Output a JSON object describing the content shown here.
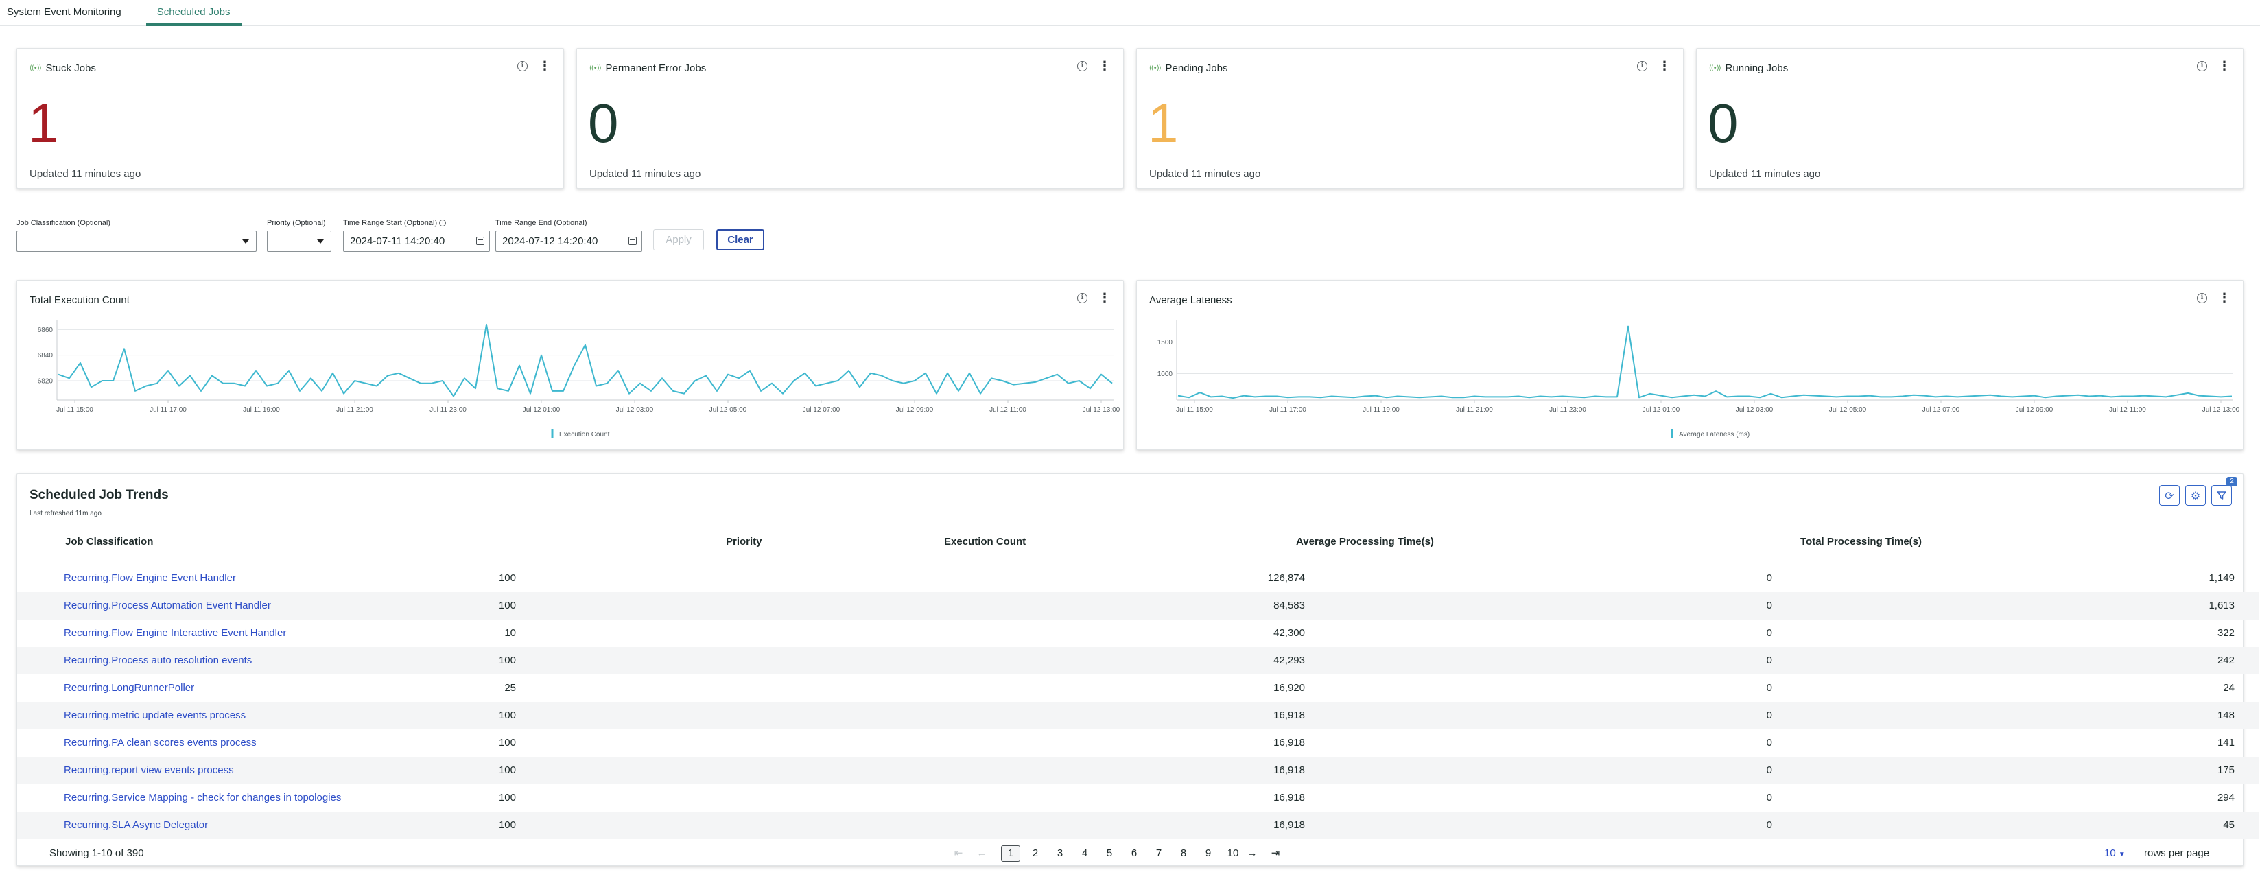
{
  "tabs": [
    {
      "label": "System Event Monitoring",
      "active": false
    },
    {
      "label": "Scheduled Jobs",
      "active": true
    }
  ],
  "kpis": [
    {
      "title": "Stuck Jobs",
      "value": "1",
      "color": "#a61d24",
      "updated": "Updated 11 minutes ago"
    },
    {
      "title": "Permanent Error Jobs",
      "value": "0",
      "color": "#1e3c32",
      "updated": "Updated 11 minutes ago"
    },
    {
      "title": "Pending Jobs",
      "value": "1",
      "color": "#f2b556",
      "updated": "Updated 11 minutes ago"
    },
    {
      "title": "Running Jobs",
      "value": "0",
      "color": "#1e3c32",
      "updated": "Updated 11 minutes ago"
    }
  ],
  "filters": {
    "job_classification_label": "Job Classification (Optional)",
    "job_classification_value": "",
    "priority_label": "Priority (Optional)",
    "priority_value": "",
    "time_start_label": "Time Range Start (Optional)",
    "time_start_value": "2024-07-11 14:20:40",
    "time_end_label": "Time Range End (Optional)",
    "time_end_value": "2024-07-12 14:20:40",
    "apply_label": "Apply",
    "clear_label": "Clear"
  },
  "chart_data": [
    {
      "type": "line",
      "title": "Total Execution Count",
      "series": [
        {
          "name": "Execution Count",
          "color": "#3fb8cf",
          "values": [
            6825,
            6822,
            6834,
            6815,
            6820,
            6820,
            6845,
            6812,
            6816,
            6818,
            6828,
            6816,
            6824,
            6812,
            6824,
            6818,
            6818,
            6816,
            6828,
            6816,
            6818,
            6828,
            6812,
            6822,
            6812,
            6826,
            6810,
            6820,
            6818,
            6816,
            6824,
            6826,
            6822,
            6818,
            6818,
            6820,
            6808,
            6822,
            6814,
            6864,
            6814,
            6812,
            6832,
            6810,
            6840,
            6812,
            6812,
            6832,
            6848,
            6816,
            6818,
            6828,
            6810,
            6818,
            6812,
            6822,
            6812,
            6810,
            6820,
            6824,
            6812,
            6825,
            6822,
            6828,
            6812,
            6818,
            6810,
            6820,
            6826,
            6816,
            6818,
            6820,
            6828,
            6815,
            6826,
            6824,
            6820,
            6818,
            6820,
            6826,
            6810,
            6826,
            6812,
            6826,
            6810,
            6822,
            6820,
            6817,
            6818,
            6819,
            6822,
            6825,
            6818,
            6820,
            6814,
            6825,
            6818
          ]
        }
      ],
      "x_tick_labels": [
        "Jul 11 15:00",
        "Jul 11 17:00",
        "Jul 11 19:00",
        "Jul 11 21:00",
        "Jul 11 23:00",
        "Jul 12 01:00",
        "Jul 12 03:00",
        "Jul 12 05:00",
        "Jul 12 07:00",
        "Jul 12 09:00",
        "Jul 12 11:00",
        "Jul 12 13:00"
      ],
      "y_ticks": [
        6820,
        6840,
        6860
      ],
      "ylim": [
        6805,
        6865
      ],
      "legend": "bottom"
    },
    {
      "type": "line",
      "title": "Average Lateness",
      "series": [
        {
          "name": "Average Lateness (ms)",
          "color": "#3fb8cf",
          "values": [
            650,
            620,
            700,
            630,
            640,
            610,
            650,
            630,
            640,
            640,
            620,
            630,
            630,
            620,
            640,
            630,
            620,
            640,
            650,
            620,
            640,
            630,
            620,
            630,
            640,
            620,
            620,
            640,
            630,
            630,
            630,
            640,
            620,
            640,
            630,
            640,
            630,
            620,
            640,
            630,
            630,
            1750,
            620,
            680,
            650,
            620,
            640,
            660,
            640,
            720,
            630,
            640,
            640,
            620,
            680,
            620,
            640,
            660,
            650,
            640,
            630,
            640,
            640,
            650,
            630,
            630,
            640,
            660,
            650,
            630,
            640,
            630,
            640,
            650,
            660,
            640,
            630,
            640,
            650,
            620,
            640,
            650,
            660,
            640,
            650,
            630,
            640,
            640,
            650,
            640,
            630,
            660,
            690,
            650,
            640,
            630,
            640
          ]
        }
      ],
      "x_tick_labels": [
        "Jul 11 15:00",
        "Jul 11 17:00",
        "Jul 11 19:00",
        "Jul 11 21:00",
        "Jul 11 23:00",
        "Jul 12 01:00",
        "Jul 12 03:00",
        "Jul 12 05:00",
        "Jul 12 07:00",
        "Jul 12 09:00",
        "Jul 12 11:00",
        "Jul 12 13:00"
      ],
      "y_ticks": [
        1000,
        1500
      ],
      "ylim": [
        580,
        1800
      ],
      "legend": "bottom"
    }
  ],
  "table": {
    "title": "Scheduled Job Trends",
    "subtitle": "Last refreshed 11m ago",
    "filter_badge": "2",
    "columns": [
      "Job Classification",
      "Priority",
      "Execution Count",
      "Average Processing Time(s)",
      "Total Processing Time(s)"
    ],
    "rows": [
      [
        "Recurring.Flow Engine Event Handler",
        "100",
        "126,874",
        "0",
        "1,149"
      ],
      [
        "Recurring.Process Automation Event Handler",
        "100",
        "84,583",
        "0",
        "1,613"
      ],
      [
        "Recurring.Flow Engine Interactive Event Handler",
        "10",
        "42,300",
        "0",
        "322"
      ],
      [
        "Recurring.Process auto resolution events",
        "100",
        "42,293",
        "0",
        "242"
      ],
      [
        "Recurring.LongRunnerPoller",
        "25",
        "16,920",
        "0",
        "24"
      ],
      [
        "Recurring.metric update events process",
        "100",
        "16,918",
        "0",
        "148"
      ],
      [
        "Recurring.PA clean scores events process",
        "100",
        "16,918",
        "0",
        "141"
      ],
      [
        "Recurring.report view events process",
        "100",
        "16,918",
        "0",
        "175"
      ],
      [
        "Recurring.Service Mapping - check for changes in topologies",
        "100",
        "16,918",
        "0",
        "294"
      ],
      [
        "Recurring.SLA Async Delegator",
        "100",
        "16,918",
        "0",
        "45"
      ]
    ],
    "showing": "Showing 1-10 of 390",
    "pages": [
      "1",
      "2",
      "3",
      "4",
      "5",
      "6",
      "7",
      "8",
      "9",
      "10"
    ],
    "current_page": "1",
    "rows_per_page_value": "10",
    "rows_per_page_label": "rows per page"
  },
  "icons": {
    "first_page": "⇤",
    "prev_page": "←",
    "next_page": "→",
    "last_page": "⇥",
    "refresh": "refresh-icon",
    "settings": "gear-icon",
    "filter": "filter-icon"
  }
}
